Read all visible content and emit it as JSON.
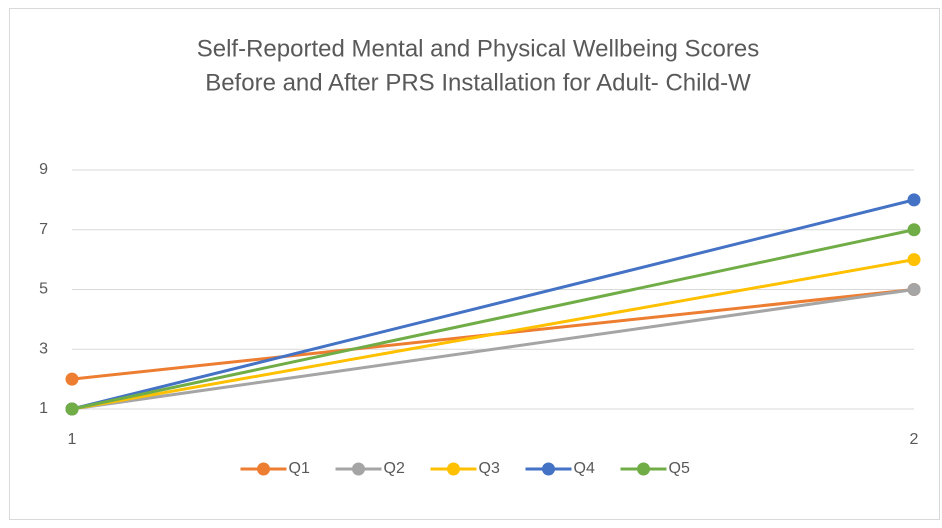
{
  "chart_data": {
    "type": "line",
    "title": [
      "Self-Reported Mental and Physical Wellbeing Scores",
      "Before and After PRS Installation for Adult- Child-W"
    ],
    "categories": [
      "1",
      "2"
    ],
    "series": [
      {
        "name": "Q1",
        "color": "#ed7d31",
        "values": [
          2,
          5
        ]
      },
      {
        "name": "Q2",
        "color": "#a5a5a5",
        "values": [
          1,
          5
        ]
      },
      {
        "name": "Q3",
        "color": "#ffc000",
        "values": [
          1,
          6
        ]
      },
      {
        "name": "Q4",
        "color": "#4472c4",
        "values": [
          1,
          8
        ]
      },
      {
        "name": "Q5",
        "color": "#70ad47",
        "values": [
          1,
          7
        ]
      }
    ],
    "ylim": [
      1,
      9
    ],
    "yticks": [
      1,
      3,
      5,
      7,
      9
    ],
    "grid": true,
    "legend": "bottom"
  }
}
